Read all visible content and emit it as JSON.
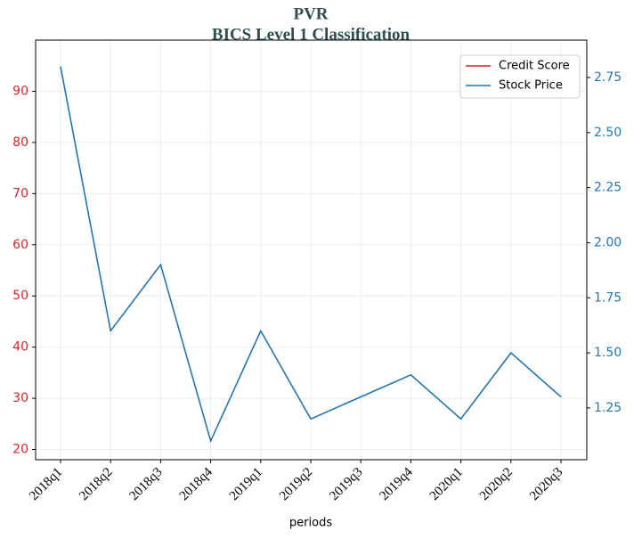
{
  "chart_data": {
    "type": "line",
    "title": "PVR",
    "subtitle": "BICS Level 1 Classification",
    "xlabel": "periods",
    "categories": [
      "2018q1",
      "2018q2",
      "2018q3",
      "2018q4",
      "2019q1",
      "2019q2",
      "2019q3",
      "2019q4",
      "2020q1",
      "2020q2",
      "2020q3"
    ],
    "series": [
      {
        "name": "Credit Score",
        "color": "#d62728",
        "values": [
          null,
          null,
          null,
          null,
          null,
          null,
          null,
          null,
          null,
          null,
          null
        ]
      },
      {
        "name": "Stock Price",
        "color": "#1f77b4",
        "axis": "y2",
        "values": [
          2.8,
          1.6,
          1.9,
          1.1,
          1.6,
          1.2,
          1.3,
          1.4,
          1.2,
          1.5,
          1.3
        ]
      }
    ],
    "ylim": [
      18,
      100
    ],
    "yticks": [
      20,
      30,
      40,
      50,
      60,
      70,
      80,
      90
    ],
    "y2lim": [
      1.015,
      2.92
    ],
    "y2ticks": [
      {
        "value": 1.25,
        "label": "1.25"
      },
      {
        "value": 1.5,
        "label": "1.50"
      },
      {
        "value": 1.75,
        "label": "1.75"
      },
      {
        "value": 2.0,
        "label": "2.00"
      },
      {
        "value": 2.25,
        "label": "2.25"
      },
      {
        "value": 2.5,
        "label": "2.50"
      },
      {
        "value": 2.75,
        "label": "2.75"
      }
    ],
    "ytick_color": "#d62728",
    "y2tick_color": "#1f77b4",
    "grid": true,
    "legend": "upper right"
  }
}
